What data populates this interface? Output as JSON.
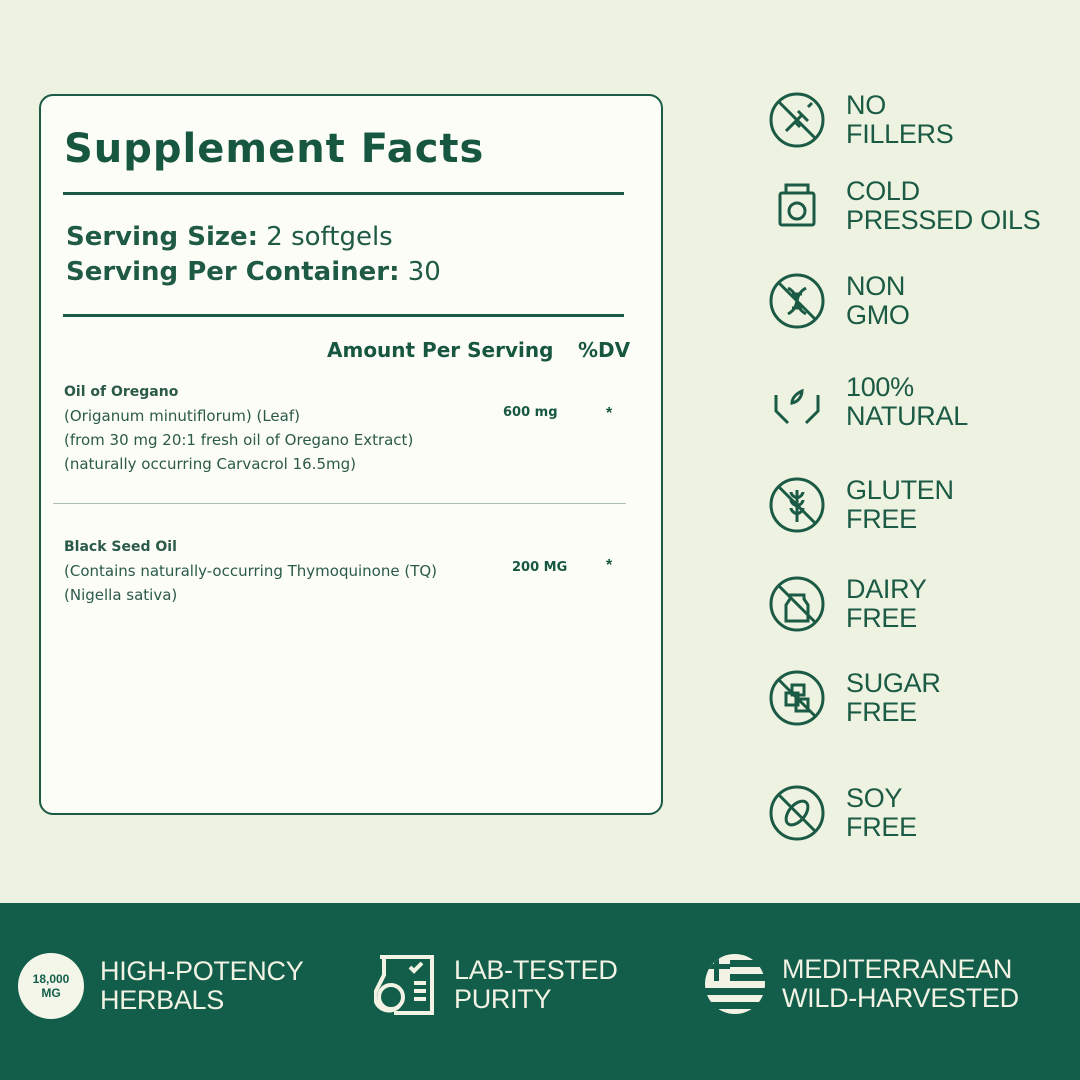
{
  "facts": {
    "title": "Supplement Facts",
    "serving_size_label": "Serving Size:",
    "serving_size_value": "2 softgels",
    "per_container_label": "Serving Per Container:",
    "per_container_value": "30",
    "amount_header": "Amount Per Serving",
    "dv_header": "%DV",
    "ingredients": [
      {
        "name": "Oil of Oregano",
        "lines": [
          "(Origanum minutiflorum) (Leaf)",
          "(from 30 mg 20:1 fresh oil of Oregano Extract)",
          "(naturally occurring Carvacrol 16.5mg)"
        ],
        "amount": "600 mg",
        "dv": "*"
      },
      {
        "name": "Black Seed Oil",
        "lines": [
          "(Contains naturally-occurring Thymoquinone (TQ)",
          "(Nigella sativa)"
        ],
        "amount": "200 MG",
        "dv": "*"
      }
    ]
  },
  "features": [
    {
      "icon": "no-fillers-icon",
      "l1": "NO",
      "l2": "FILLERS"
    },
    {
      "icon": "cold-press-icon",
      "l1": "COLD",
      "l2": "PRESSED OILS"
    },
    {
      "icon": "non-gmo-icon",
      "l1": "NON",
      "l2": "GMO"
    },
    {
      "icon": "hands-leaf-icon",
      "l1": "100%",
      "l2": "NATURAL"
    },
    {
      "icon": "gluten-free-icon",
      "l1": "GLUTEN",
      "l2": "FREE"
    },
    {
      "icon": "dairy-free-icon",
      "l1": "DAIRY",
      "l2": "FREE"
    },
    {
      "icon": "sugar-free-icon",
      "l1": "SUGAR",
      "l2": "FREE"
    },
    {
      "icon": "soy-free-icon",
      "l1": "SOY",
      "l2": "FREE"
    }
  ],
  "band": {
    "badge_l1": "18,000",
    "badge_l2": "MG",
    "items": [
      {
        "l1": "HIGH-POTENCY",
        "l2": "HERBALS"
      },
      {
        "icon": "lab-flask-icon",
        "l1": "LAB-TESTED",
        "l2": "PURITY"
      },
      {
        "icon": "greek-flag-icon",
        "l1": "MEDITERRANEAN",
        "l2": "WILD-HARVESTED"
      }
    ]
  },
  "colors": {
    "primary": "#135e4b",
    "background": "#eef3e1",
    "card": "#fdfdf8"
  }
}
